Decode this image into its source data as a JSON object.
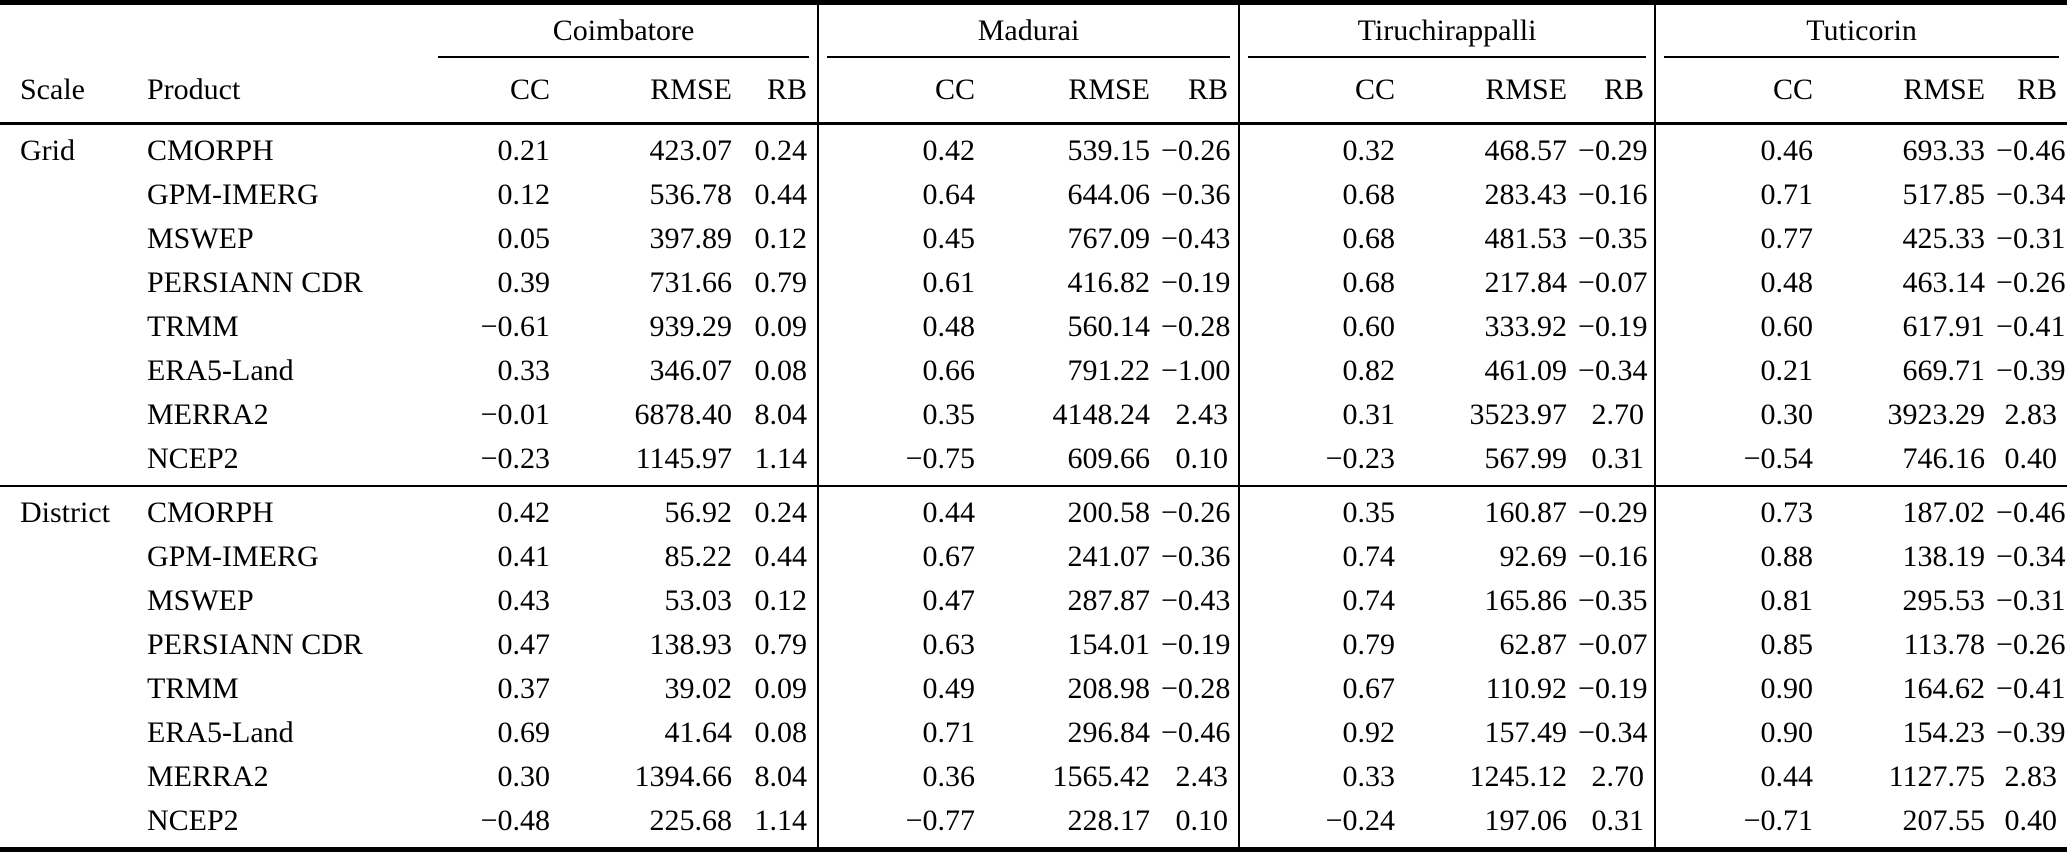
{
  "table": {
    "scale_header": "Scale",
    "product_header": "Product",
    "city_groups": [
      "Coimbatore",
      "Madurai",
      "Tiruchirappalli",
      "Tuticorin"
    ],
    "metric_headers": [
      "CC",
      "RMSE",
      "RB"
    ],
    "sections": [
      {
        "scale": "Grid",
        "rows": [
          {
            "product": "CMORPH",
            "values": [
              "0.21",
              "423.07",
              "0.24",
              "0.42",
              "539.15",
              "−0.26",
              "0.32",
              "468.57",
              "−0.29",
              "0.46",
              "693.33",
              "−0.46"
            ]
          },
          {
            "product": "GPM-IMERG",
            "values": [
              "0.12",
              "536.78",
              "0.44",
              "0.64",
              "644.06",
              "−0.36",
              "0.68",
              "283.43",
              "−0.16",
              "0.71",
              "517.85",
              "−0.34"
            ]
          },
          {
            "product": "MSWEP",
            "values": [
              "0.05",
              "397.89",
              "0.12",
              "0.45",
              "767.09",
              "−0.43",
              "0.68",
              "481.53",
              "−0.35",
              "0.77",
              "425.33",
              "−0.31"
            ]
          },
          {
            "product": "PERSIANN CDR",
            "values": [
              "0.39",
              "731.66",
              "0.79",
              "0.61",
              "416.82",
              "−0.19",
              "0.68",
              "217.84",
              "−0.07",
              "0.48",
              "463.14",
              "−0.26"
            ]
          },
          {
            "product": "TRMM",
            "values": [
              "−0.61",
              "939.29",
              "0.09",
              "0.48",
              "560.14",
              "−0.28",
              "0.60",
              "333.92",
              "−0.19",
              "0.60",
              "617.91",
              "−0.41"
            ]
          },
          {
            "product": "ERA5-Land",
            "values": [
              "0.33",
              "346.07",
              "0.08",
              "0.66",
              "791.22",
              "−1.00",
              "0.82",
              "461.09",
              "−0.34",
              "0.21",
              "669.71",
              "−0.39"
            ]
          },
          {
            "product": "MERRA2",
            "values": [
              "−0.01",
              "6878.40",
              "8.04",
              "0.35",
              "4148.24",
              "2.43",
              "0.31",
              "3523.97",
              "2.70",
              "0.30",
              "3923.29",
              "2.83"
            ]
          },
          {
            "product": "NCEP2",
            "values": [
              "−0.23",
              "1145.97",
              "1.14",
              "−0.75",
              "609.66",
              "0.10",
              "−0.23",
              "567.99",
              "0.31",
              "−0.54",
              "746.16",
              "0.40"
            ]
          }
        ]
      },
      {
        "scale": "District",
        "rows": [
          {
            "product": "CMORPH",
            "values": [
              "0.42",
              "56.92",
              "0.24",
              "0.44",
              "200.58",
              "−0.26",
              "0.35",
              "160.87",
              "−0.29",
              "0.73",
              "187.02",
              "−0.46"
            ]
          },
          {
            "product": "GPM-IMERG",
            "values": [
              "0.41",
              "85.22",
              "0.44",
              "0.67",
              "241.07",
              "−0.36",
              "0.74",
              "92.69",
              "−0.16",
              "0.88",
              "138.19",
              "−0.34"
            ]
          },
          {
            "product": "MSWEP",
            "values": [
              "0.43",
              "53.03",
              "0.12",
              "0.47",
              "287.87",
              "−0.43",
              "0.74",
              "165.86",
              "−0.35",
              "0.81",
              "295.53",
              "−0.31"
            ]
          },
          {
            "product": "PERSIANN CDR",
            "values": [
              "0.47",
              "138.93",
              "0.79",
              "0.63",
              "154.01",
              "−0.19",
              "0.79",
              "62.87",
              "−0.07",
              "0.85",
              "113.78",
              "−0.26"
            ]
          },
          {
            "product": "TRMM",
            "values": [
              "0.37",
              "39.02",
              "0.09",
              "0.49",
              "208.98",
              "−0.28",
              "0.67",
              "110.92",
              "−0.19",
              "0.90",
              "164.62",
              "−0.41"
            ]
          },
          {
            "product": "ERA5-Land",
            "values": [
              "0.69",
              "41.64",
              "0.08",
              "0.71",
              "296.84",
              "−0.46",
              "0.92",
              "157.49",
              "−0.34",
              "0.90",
              "154.23",
              "−0.39"
            ]
          },
          {
            "product": "MERRA2",
            "values": [
              "0.30",
              "1394.66",
              "8.04",
              "0.36",
              "1565.42",
              "2.43",
              "0.33",
              "1245.12",
              "2.70",
              "0.44",
              "1127.75",
              "2.83"
            ]
          },
          {
            "product": "NCEP2",
            "values": [
              "−0.48",
              "225.68",
              "1.14",
              "−0.77",
              "228.17",
              "0.10",
              "−0.24",
              "197.06",
              "0.31",
              "−0.71",
              "207.55",
              "0.40"
            ]
          }
        ]
      }
    ]
  }
}
